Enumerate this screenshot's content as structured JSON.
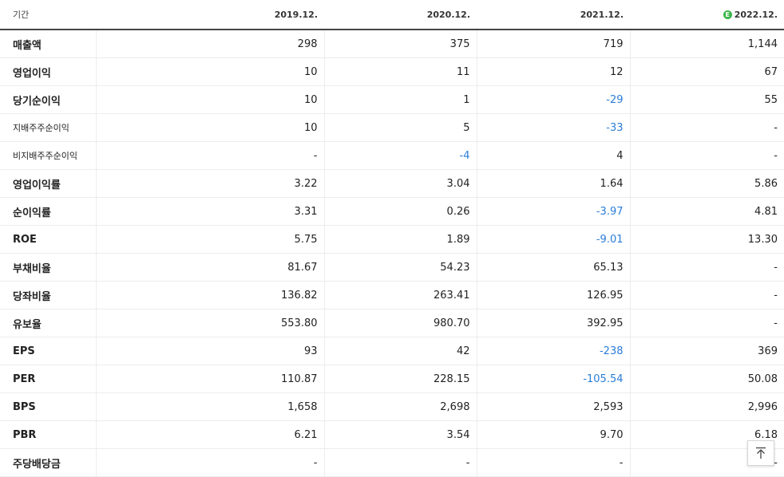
{
  "header": {
    "label": "기간",
    "periods": [
      "2019.12.",
      "2020.12.",
      "2021.12.",
      "2022.12."
    ],
    "estimate_icon": "E"
  },
  "rows": [
    {
      "label": "매출액",
      "values": [
        "298",
        "375",
        "719",
        "1,144"
      ],
      "small": false,
      "group_start": false
    },
    {
      "label": "영업이익",
      "values": [
        "10",
        "11",
        "12",
        "67"
      ],
      "small": false,
      "group_start": false
    },
    {
      "label": "당기순이익",
      "values": [
        "10",
        "1",
        "-29",
        "55"
      ],
      "small": false,
      "group_start": false
    },
    {
      "label": "지배주주순이익",
      "values": [
        "10",
        "5",
        "-33",
        "-"
      ],
      "small": true,
      "group_start": false
    },
    {
      "label": "비지배주주순이익",
      "values": [
        "-",
        "-4",
        "4",
        "-"
      ],
      "small": true,
      "group_start": false
    },
    {
      "label": "영업이익률",
      "values": [
        "3.22",
        "3.04",
        "1.64",
        "5.86"
      ],
      "small": false,
      "group_start": true
    },
    {
      "label": "순이익률",
      "values": [
        "3.31",
        "0.26",
        "-3.97",
        "4.81"
      ],
      "small": false,
      "group_start": false
    },
    {
      "label": "ROE",
      "values": [
        "5.75",
        "1.89",
        "-9.01",
        "13.30"
      ],
      "small": false,
      "group_start": false
    },
    {
      "label": "부채비율",
      "values": [
        "81.67",
        "54.23",
        "65.13",
        "-"
      ],
      "small": false,
      "group_start": true
    },
    {
      "label": "당좌비율",
      "values": [
        "136.82",
        "263.41",
        "126.95",
        "-"
      ],
      "small": false,
      "group_start": false
    },
    {
      "label": "유보율",
      "values": [
        "553.80",
        "980.70",
        "392.95",
        "-"
      ],
      "small": false,
      "group_start": false
    },
    {
      "label": "EPS",
      "values": [
        "93",
        "42",
        "-238",
        "369"
      ],
      "small": false,
      "group_start": true
    },
    {
      "label": "PER",
      "values": [
        "110.87",
        "228.15",
        "-105.54",
        "50.08"
      ],
      "small": false,
      "group_start": false
    },
    {
      "label": "BPS",
      "values": [
        "1,658",
        "2,698",
        "2,593",
        "2,996"
      ],
      "small": false,
      "group_start": false
    },
    {
      "label": "PBR",
      "values": [
        "6.21",
        "3.54",
        "9.70",
        "6.18"
      ],
      "small": false,
      "group_start": false
    },
    {
      "label": "주당배당금",
      "values": [
        "-",
        "-",
        "-",
        "-"
      ],
      "small": false,
      "group_start": true
    }
  ],
  "colors": {
    "negative": "#2a7dd8",
    "estimate_badge": "#3bb54a"
  },
  "scroll_top_button": {
    "icon": "arrow-up-to-top-icon"
  }
}
